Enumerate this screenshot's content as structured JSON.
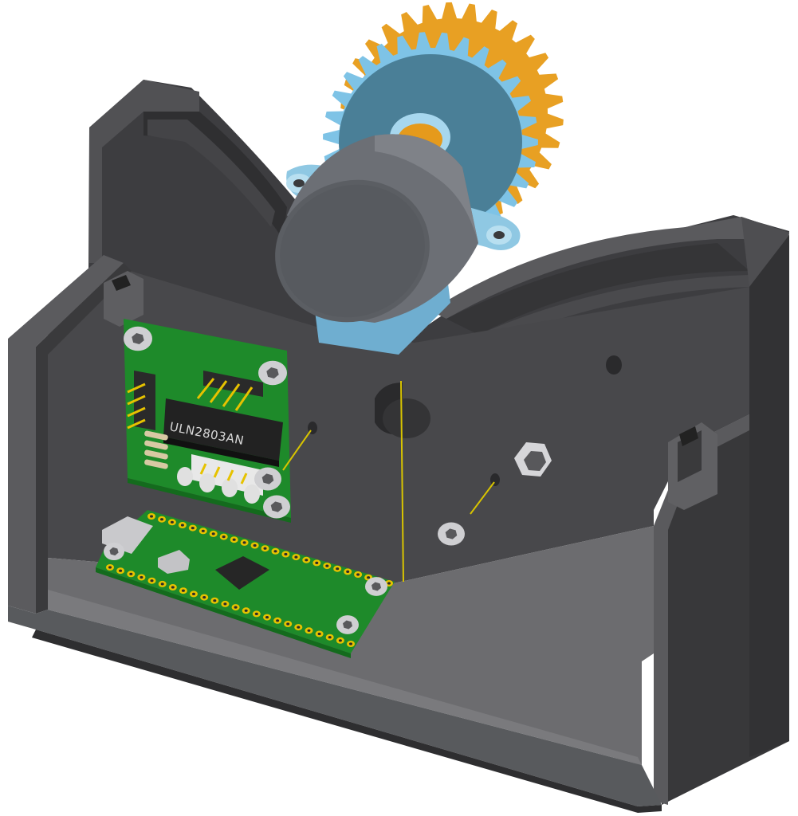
{
  "canvas": {
    "background": "#ffffff"
  },
  "colors": {
    "housing_dark": "#3a3a3c",
    "housing_mid": "#4b4b4d",
    "housing_light": "#5c5c5e",
    "housing_floor": "#6a6a6c",
    "pcb_green": "#1f8a2b",
    "pcb_green_dark": "#17701f",
    "gear_blue": "#7ec3e6",
    "gear_blue_dark": "#4a7f97",
    "gear_orange": "#e8a023",
    "motor_grey": "#6b6e73",
    "motor_face": "#55585d",
    "gold": "#e6c200",
    "screw": "#cfcfd2",
    "chip_black": "#222222"
  },
  "components": {
    "driver_board": {
      "chip_label": "ULN2803AN"
    }
  },
  "icons": [
    "hex-screw-icon",
    "gear-icon",
    "stepper-motor-icon"
  ]
}
